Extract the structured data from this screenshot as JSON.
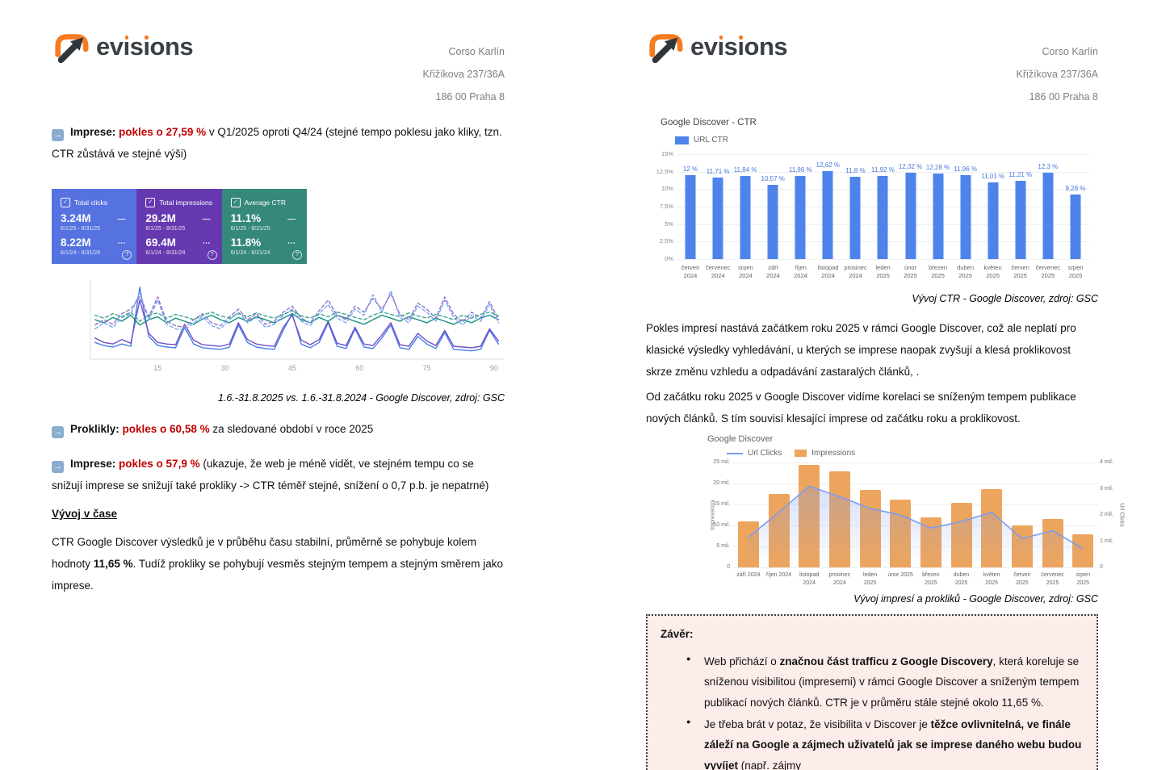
{
  "colors": {
    "highlight_red": "#c00000",
    "logo_orange": "#f47b20",
    "bar_blue": "#4e83ec",
    "bar_orange": "#eda55d",
    "line_blue": "#7b9bf0",
    "card_blue": "#5572e0",
    "card_purple": "#6639b0",
    "card_teal": "#35897b",
    "zaver_background": "#fcecea"
  },
  "icons": {
    "arrow_bullet": "→",
    "checkbox": "✓",
    "dash": "—",
    "ellipsis": "⋯",
    "help": "?"
  },
  "header": {
    "logo_text": "evisions",
    "address": [
      "Corso Karlín",
      "Křižíkova 237/36A",
      "186 00 Praha 8"
    ]
  },
  "page1": {
    "para_imprese_q1": [
      {
        "t": "Imprese: ",
        "c": "b"
      },
      {
        "t": "pokles o 27,59 %",
        "c": "rb"
      },
      {
        "t": " v Q1/2025 oproti Q4/24 (stejné tempo poklesu jako kliky, tzn. CTR zůstává ve stejné výši)"
      }
    ],
    "para_proklikly": [
      {
        "t": "Proklikly: ",
        "c": "b"
      },
      {
        "t": "pokles o 60,58 %",
        "c": "rb"
      },
      {
        "t": " za sledované období v roce 2025"
      }
    ],
    "para_imprese2": [
      {
        "t": "Imprese: ",
        "c": "b"
      },
      {
        "t": "pokles o 57,9 %",
        "c": "rb"
      },
      {
        "t": " (ukazuje, že web je méně vidět, ve stejném tempu co se snižují imprese se snižují také prokliky -> CTR téměř stejné, snížení o 0,7 p.b. je nepatrné)"
      }
    ],
    "heading_vyvoj": "Vývoj v čase",
    "para_ctr": [
      {
        "t": "CTR Google Discover výsledků je v průběhu času stabilní, průměrně se pohybuje kolem hodnoty "
      },
      {
        "t": "11,65 %",
        "c": "b"
      },
      {
        "t": ". Tudíž prokliky se pohybují vesměs stejným tempem a stejným směrem jako imprese."
      }
    ]
  },
  "cards": [
    {
      "label": "Total clicks",
      "color": "#5572e0",
      "value_current": "3.24M",
      "range_current": "6/1/25 - 8/31/25",
      "value_previous": "8.22M",
      "range_previous": "6/1/24 - 8/31/24"
    },
    {
      "label": "Total impressions",
      "color": "#6639b0",
      "value_current": "29.2M",
      "range_current": "6/1/25 - 8/31/25",
      "value_previous": "69.4M",
      "range_previous": "6/1/24 - 8/31/24"
    },
    {
      "label": "Average CTR",
      "color": "#35897b",
      "value_current": "11.1%",
      "range_current": "6/1/25 - 8/31/25",
      "value_previous": "11.8%",
      "range_previous": "6/1/24 - 8/31/24"
    }
  ],
  "page2": {
    "para_pokles": [
      {
        "t": "Pokles impresí nastává začátkem roku 2025 v rámci Google Discover, což ale neplatí pro klasické výsledky vyhledávání, u kterých se imprese naopak zvyšují a klesá proklikovost skrze změnu vzhledu a odpadávání zastaralých článků, ."
      }
    ],
    "para_od_zacatku": [
      {
        "t": "Od začátku roku 2025 v Google Discover vidíme korelaci se sníženým tempem publikace nových článků. S tím souvisí klesající imprese od začátku roku a proklikovost."
      }
    ],
    "zaver": {
      "title": "Závěr:",
      "bullets": [
        [
          {
            "t": "Web přichází o "
          },
          {
            "t": "značnou část trafficu z Google Discovery",
            "c": "b"
          },
          {
            "t": ", která koreluje se sníženou visibilitou (impresemi) v rámci Google Discover a sníženým tempem publikací nových článků. CTR je v průměru stále stejné okolo 11,65 %."
          }
        ],
        [
          {
            "t": "Je třeba brát v potaz, že visibilita v Discover je "
          },
          {
            "t": "těžce ovlivnitelná, ve finále záleží na Google a zájmech uživatelů jak se imprese daného webu budou vyvíjet",
            "c": "b"
          },
          {
            "t": " (např. zájmy"
          }
        ]
      ]
    }
  },
  "chart_data": [
    {
      "type": "line",
      "caption": "1.6.-31.8.2025 vs. 1.6.-31.8.2024 - Google Discover, zdroj: GSC",
      "x_ticks": [
        15,
        30,
        45,
        60,
        75,
        90
      ],
      "x_max": 92,
      "note": "GSC comparison chart; solid lines = 1.6.-31.8.2025, dashed = 1.6.-31.8.2024; blue = clicks, purple = impressions, green = CTR; values normalized 0-100 of plot height, sampled every 2nd day",
      "series": [
        {
          "name": "clicks-2025",
          "color": "#4a7de8",
          "dash": false,
          "values": [
            22,
            18,
            16,
            20,
            17,
            95,
            30,
            18,
            16,
            15,
            42,
            20,
            15,
            14,
            13,
            16,
            45,
            22,
            16,
            14,
            13,
            38,
            60,
            20,
            15,
            22,
            48,
            17,
            14,
            40,
            16,
            14,
            28,
            45,
            15,
            13,
            30,
            20,
            14,
            35,
            13,
            12,
            11,
            13,
            38,
            20
          ]
        },
        {
          "name": "impressions-2025",
          "color": "#6e51c8",
          "dash": false,
          "values": [
            28,
            22,
            20,
            26,
            21,
            78,
            34,
            22,
            20,
            19,
            46,
            25,
            19,
            18,
            17,
            20,
            48,
            26,
            20,
            18,
            17,
            42,
            58,
            25,
            19,
            26,
            50,
            21,
            18,
            42,
            20,
            18,
            32,
            48,
            19,
            17,
            34,
            24,
            18,
            38,
            17,
            16,
            15,
            17,
            40,
            24
          ]
        },
        {
          "name": "ctr-2025",
          "color": "#12917e",
          "dash": false,
          "values": [
            52,
            48,
            55,
            50,
            58,
            45,
            52,
            56,
            48,
            54,
            50,
            46,
            53,
            58,
            52,
            48,
            55,
            50,
            56,
            52,
            48,
            54,
            60,
            52,
            48,
            55,
            50,
            58,
            54,
            50,
            46,
            52,
            58,
            54,
            50,
            56,
            52,
            48,
            54,
            50,
            46,
            52,
            48,
            54,
            58,
            52
          ]
        },
        {
          "name": "clicks-2024",
          "color": "#78a6f5",
          "dash": true,
          "values": [
            40,
            48,
            42,
            55,
            60,
            88,
            52,
            78,
            46,
            40,
            38,
            48,
            56,
            44,
            40,
            52,
            62,
            48,
            55,
            42,
            46,
            58,
            66,
            50,
            44,
            60,
            72,
            54,
            48,
            66,
            58,
            85,
            62,
            90,
            55,
            48,
            70,
            62,
            50,
            78,
            55,
            45,
            58,
            50,
            72,
            48
          ]
        },
        {
          "name": "impressions-2024",
          "color": "#9575cd",
          "dash": true,
          "values": [
            45,
            52,
            46,
            60,
            66,
            82,
            56,
            82,
            50,
            44,
            42,
            52,
            60,
            48,
            44,
            56,
            66,
            52,
            60,
            46,
            50,
            62,
            70,
            54,
            48,
            64,
            78,
            58,
            52,
            70,
            62,
            80,
            66,
            86,
            59,
            52,
            74,
            66,
            54,
            82,
            59,
            49,
            62,
            54,
            76,
            52
          ]
        },
        {
          "name": "ctr-2024",
          "color": "#3fa393",
          "dash": true,
          "values": [
            58,
            54,
            60,
            56,
            62,
            50,
            58,
            61,
            54,
            59,
            56,
            52,
            58,
            62,
            57,
            54,
            60,
            56,
            61,
            57,
            54,
            59,
            64,
            57,
            54,
            60,
            56,
            62,
            59,
            55,
            52,
            58,
            62,
            59,
            56,
            61,
            57,
            54,
            59,
            56,
            52,
            58,
            54,
            59,
            62,
            57
          ]
        }
      ]
    },
    {
      "type": "bar",
      "title": "Google Discover - CTR",
      "legend": [
        {
          "label": "URL CTR",
          "color": "#4e83ec"
        }
      ],
      "categories": [
        "červen 2024",
        "červenec 2024",
        "srpen 2024",
        "září 2024",
        "říjen 2024",
        "listopad 2024",
        "prosinec 2024",
        "leden 2025",
        "únor 2025",
        "březen 2025",
        "duben 2025",
        "květen 2025",
        "červen 2025",
        "červenec 2025",
        "srpen 2025"
      ],
      "values": [
        12,
        11.71,
        11.84,
        10.57,
        11.86,
        12.62,
        11.8,
        11.92,
        12.32,
        12.28,
        11.96,
        11.01,
        11.21,
        12.3,
        9.28
      ],
      "labels": [
        "12 %",
        "11,71 %",
        "11,84 %",
        "10,57 %",
        "11,86 %",
        "12,62 %",
        "11,8 %",
        "11,92 %",
        "12,32 %",
        "12,28 %",
        "11,96 %",
        "11,01 %",
        "11,21 %",
        "12,3 %",
        "9,28 %"
      ],
      "ylim": [
        0,
        15
      ],
      "yticks": [
        {
          "v": 0,
          "label": "0%"
        },
        {
          "v": 2.5,
          "label": "2,5%"
        },
        {
          "v": 5,
          "label": "5%"
        },
        {
          "v": 7.5,
          "label": "7,5%"
        },
        {
          "v": 10,
          "label": "10%"
        },
        {
          "v": 12.5,
          "label": "12,5%"
        },
        {
          "v": 15,
          "label": "15%"
        }
      ],
      "caption": "Vývoj CTR - Google Discover, zdroj: GSC"
    },
    {
      "type": "bar+line",
      "title": "Google Discover",
      "legend": [
        {
          "label": "Url Clicks",
          "color": "#7b9bf0",
          "kind": "line"
        },
        {
          "label": "Impressions",
          "color": "#eda55d",
          "kind": "square"
        }
      ],
      "categories": [
        "září 2024",
        "říjen 2024",
        "listopad 2024",
        "prosinec 2024",
        "leden 2025",
        "únor 2025",
        "březen 2025",
        "duben 2025",
        "květen 2025",
        "červen 2025",
        "červenec 2025",
        "srpen 2025"
      ],
      "impressions_mil": [
        11,
        17.5,
        24.5,
        23,
        18.5,
        16.3,
        12,
        15.5,
        18.8,
        10,
        11.5,
        8
      ],
      "url_clicks_mil": [
        1.15,
        2.1,
        3.1,
        2.7,
        2.25,
        2.0,
        1.5,
        1.75,
        2.1,
        1.1,
        1.4,
        0.72
      ],
      "left_axis": {
        "title": "Impressions",
        "max": 25,
        "ticks": [
          {
            "v": 0,
            "label": "0"
          },
          {
            "v": 5,
            "label": "5 mil."
          },
          {
            "v": 10,
            "label": "10 mil."
          },
          {
            "v": 15,
            "label": "15 mil."
          },
          {
            "v": 20,
            "label": "20 mil."
          },
          {
            "v": 25,
            "label": "25 mil."
          }
        ]
      },
      "right_axis": {
        "title": "Url Clicks",
        "max": 4,
        "ticks": [
          {
            "v": 0,
            "label": "0"
          },
          {
            "v": 1,
            "label": "1 mil."
          },
          {
            "v": 2,
            "label": "2 mil."
          },
          {
            "v": 3,
            "label": "3 mil."
          },
          {
            "v": 4,
            "label": "4 mil."
          }
        ]
      },
      "caption": "Vývoj impresí a prokliků - Google Discover, zdroj: GSC"
    }
  ]
}
